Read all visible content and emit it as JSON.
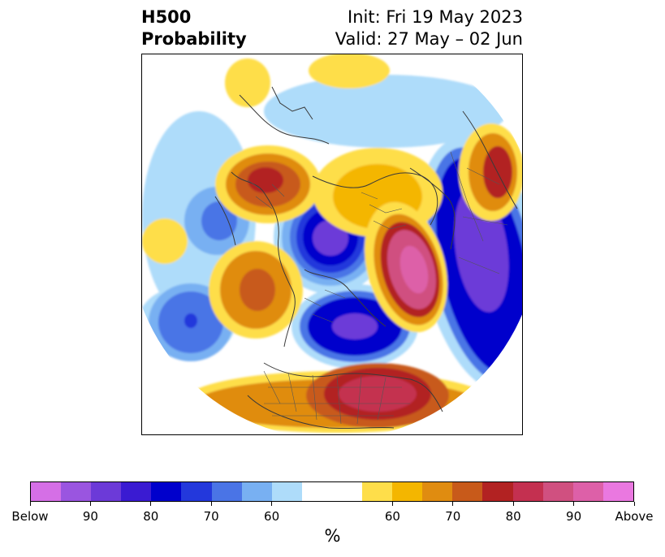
{
  "title": {
    "line1": "H500",
    "line2": "Probability"
  },
  "dates": {
    "init": "Init: Fri 19 May 2023",
    "valid": "Valid: 27 May – 02 Jun"
  },
  "colorbar": {
    "colors": [
      "#d56fe6",
      "#9a55e0",
      "#6c3ad8",
      "#3a1bd2",
      "#0000cc",
      "#2338dc",
      "#4a74e6",
      "#78b0f2",
      "#aedcfa",
      "#ffffff",
      "#ffffff",
      "#fede4a",
      "#f4b600",
      "#e08c10",
      "#c85a1a",
      "#b22222",
      "#c43050",
      "#d05080",
      "#dd60a8",
      "#ea78e0"
    ],
    "labels": [
      "Below",
      "90",
      "80",
      "70",
      "60",
      "60",
      "70",
      "80",
      "90",
      "Above"
    ],
    "unit": "%"
  },
  "map": {
    "projection": "north-polar-stereographic",
    "anomaly_centers": [
      {
        "name": "negative-center-north-atlantic",
        "sign": "below",
        "max_percent": 80
      },
      {
        "name": "negative-center-hudson-bay",
        "sign": "below",
        "max_percent": 80
      },
      {
        "name": "negative-center-east-asia",
        "sign": "below",
        "max_percent": 80
      },
      {
        "name": "positive-center-greenland-arctic",
        "sign": "above",
        "max_percent": 90
      },
      {
        "name": "positive-center-eastern-us",
        "sign": "above",
        "max_percent": 80
      },
      {
        "name": "positive-center-scandinavia",
        "sign": "above",
        "max_percent": 80
      },
      {
        "name": "positive-center-far-east",
        "sign": "above",
        "max_percent": 80
      }
    ]
  }
}
